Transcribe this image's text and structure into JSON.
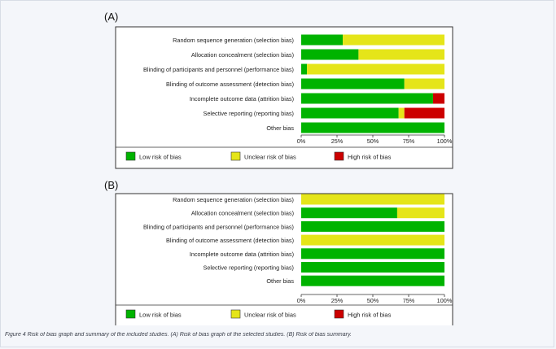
{
  "caption": "Figure 4 Risk of bias graph and summary of the included studies. (A) Risk of bias graph of the selected studies. (B) Risk of bias summary.",
  "colors": {
    "low": "#00b300",
    "unclear": "#e5e519",
    "high": "#cc0000"
  },
  "chart_data": [
    {
      "type": "bar",
      "stacked": true,
      "orientation": "horizontal",
      "panel_label": "(A)",
      "categories": [
        "Random sequence generation (selection bias)",
        "Allocation concealment (selection bias)",
        "Blinding of participants and personnel (performance bias)",
        "Blinding of outcome assessment (detection bias)",
        "Incomplete outcome data (attrition bias)",
        "Selective reporting (reporting bias)",
        "Other bias"
      ],
      "series": [
        {
          "name": "Low risk of bias",
          "color": "#00b300",
          "values": [
            29,
            40,
            4,
            72,
            92,
            68,
            100
          ]
        },
        {
          "name": "Unclear risk of bias",
          "color": "#e5e519",
          "values": [
            71,
            60,
            96,
            28,
            0,
            4,
            0
          ]
        },
        {
          "name": "High risk of bias",
          "color": "#cc0000",
          "values": [
            0,
            0,
            0,
            0,
            8,
            28,
            0
          ]
        }
      ],
      "x_ticks": [
        "0%",
        "25%",
        "50%",
        "75%",
        "100%"
      ],
      "xlim": [
        0,
        100
      ],
      "legend_position": "bottom"
    },
    {
      "type": "bar",
      "stacked": true,
      "orientation": "horizontal",
      "panel_label": "(B)",
      "categories": [
        "Random sequence generation (selection bias)",
        "Allocation concealment (selection bias)",
        "Blinding of participants and personnel (performance bias)",
        "Blinding of outcome assessment (detection bias)",
        "Incomplete outcome data (attrition bias)",
        "Selective reporting (reporting bias)",
        "Other bias"
      ],
      "series": [
        {
          "name": "Low risk of bias",
          "color": "#00b300",
          "values": [
            0,
            67,
            100,
            0,
            100,
            100,
            100
          ]
        },
        {
          "name": "Unclear risk of bias",
          "color": "#e5e519",
          "values": [
            100,
            33,
            0,
            100,
            0,
            0,
            0
          ]
        },
        {
          "name": "High risk of bias",
          "color": "#cc0000",
          "values": [
            0,
            0,
            0,
            0,
            0,
            0,
            0
          ]
        }
      ],
      "x_ticks": [
        "0%",
        "25%",
        "50%",
        "75%",
        "100%"
      ],
      "xlim": [
        0,
        100
      ],
      "legend_position": "bottom"
    }
  ]
}
